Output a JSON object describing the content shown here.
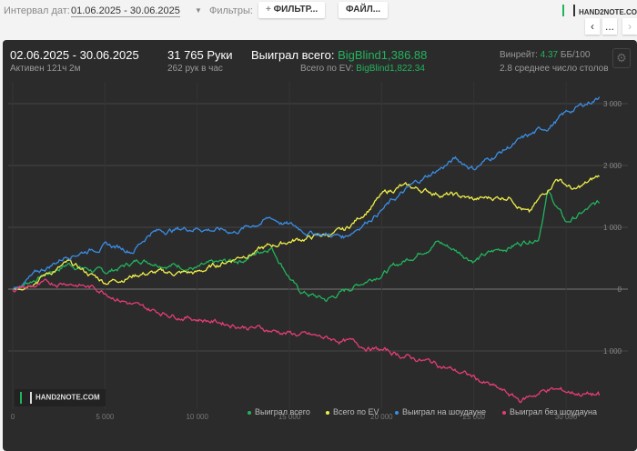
{
  "toolbar": {
    "interval_label": "Интервал дат:",
    "interval_value": "01.06.2025 - 30.06.2025",
    "filters_label": "Фильтры:",
    "filter_button": "ФИЛЬТР...",
    "file_button": "ФАЙЛ...",
    "logo": "HAND2NOTE.COM",
    "prev": "‹",
    "more": "...",
    "next": "›"
  },
  "summary": {
    "date_range": "02.06.2025 - 30.06.2025",
    "active": "Активен 121ч 2м",
    "hands": "31 765 Руки",
    "hands_per_hour": "262 рук в час",
    "won_label": "Выиграл всего:",
    "won_value": "BigBlind1,386.88",
    "ev_label": "Всего по EV:",
    "ev_value": "BigBlind1,822.34",
    "winrate_label": "Винрейт:",
    "winrate_value": "4.37",
    "winrate_unit": "ББ/100",
    "tables": "2.8 среднее число столов"
  },
  "watermark": "HAND2NOTE.COM",
  "chart_data": {
    "type": "line",
    "xlim": [
      0,
      32000
    ],
    "ylim": [
      -1800,
      3200
    ],
    "x_ticks": [
      {
        "v": 0,
        "label": "0"
      },
      {
        "v": 5000,
        "label": "5 000"
      },
      {
        "v": 10000,
        "label": "10 000"
      },
      {
        "v": 15000,
        "label": "15 000"
      },
      {
        "v": 20000,
        "label": "20 000"
      },
      {
        "v": 25000,
        "label": "25 000"
      },
      {
        "v": 30000,
        "label": "30 000"
      }
    ],
    "y_ticks": [
      {
        "v": 3000,
        "label": "3 000"
      },
      {
        "v": 2000,
        "label": "2 000"
      },
      {
        "v": 1000,
        "label": "1 000"
      },
      {
        "v": 0,
        "label": "0"
      },
      {
        "v": -1000,
        "label": "1 000"
      }
    ],
    "legend_position": "bottom-right",
    "series": [
      {
        "name": "Выиграл всего",
        "color": "#21b45c",
        "points": [
          [
            0,
            0
          ],
          [
            3000,
            410
          ],
          [
            5000,
            260
          ],
          [
            7000,
            480
          ],
          [
            10000,
            340
          ],
          [
            12500,
            480
          ],
          [
            14000,
            700
          ],
          [
            15500,
            -30
          ],
          [
            17000,
            -180
          ],
          [
            19000,
            120
          ],
          [
            21000,
            410
          ],
          [
            23000,
            780
          ],
          [
            25000,
            480
          ],
          [
            27000,
            700
          ],
          [
            28500,
            850
          ],
          [
            29000,
            1590
          ],
          [
            30000,
            1070
          ],
          [
            31800,
            1390
          ]
        ]
      },
      {
        "name": "Всего по EV",
        "color": "#f0ef4a",
        "points": [
          [
            0,
            0
          ],
          [
            3000,
            410
          ],
          [
            5000,
            120
          ],
          [
            7000,
            260
          ],
          [
            10000,
            260
          ],
          [
            12500,
            560
          ],
          [
            15000,
            780
          ],
          [
            18000,
            930
          ],
          [
            20000,
            1510
          ],
          [
            21000,
            1660
          ],
          [
            24000,
            1510
          ],
          [
            25000,
            1440
          ],
          [
            27000,
            1510
          ],
          [
            28000,
            1220
          ],
          [
            29500,
            1810
          ],
          [
            30500,
            1590
          ],
          [
            31800,
            1820
          ]
        ]
      },
      {
        "name": "Выиграл на шоудауне",
        "color": "#3a8ee6",
        "points": [
          [
            0,
            0
          ],
          [
            3000,
            560
          ],
          [
            5000,
            710
          ],
          [
            6500,
            630
          ],
          [
            7500,
            930
          ],
          [
            10000,
            1000
          ],
          [
            12000,
            930
          ],
          [
            14000,
            1150
          ],
          [
            16000,
            930
          ],
          [
            18000,
            850
          ],
          [
            20000,
            1290
          ],
          [
            22000,
            1740
          ],
          [
            24000,
            2100
          ],
          [
            25000,
            1960
          ],
          [
            27000,
            2320
          ],
          [
            29000,
            2620
          ],
          [
            30000,
            2840
          ],
          [
            31800,
            3110
          ]
        ]
      },
      {
        "name": "Выиграл без шоудауна",
        "color": "#e63c78",
        "points": [
          [
            0,
            0
          ],
          [
            3000,
            120
          ],
          [
            5000,
            -30
          ],
          [
            7000,
            -320
          ],
          [
            10000,
            -470
          ],
          [
            13000,
            -620
          ],
          [
            16000,
            -760
          ],
          [
            18000,
            -840
          ],
          [
            20000,
            -990
          ],
          [
            23000,
            -1210
          ],
          [
            25000,
            -1430
          ],
          [
            26000,
            -1580
          ],
          [
            27500,
            -1800
          ],
          [
            29000,
            -1620
          ],
          [
            31800,
            -1720
          ]
        ]
      }
    ]
  }
}
